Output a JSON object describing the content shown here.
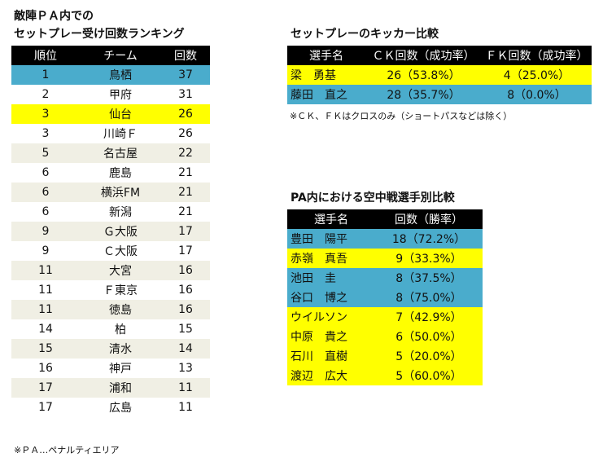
{
  "ranking": {
    "title_line1": "敵陣ＰＡ内での",
    "title_line2": "セットプレー受け回数ランキング",
    "headers": [
      "順位",
      "チーム",
      "回数"
    ],
    "rows": [
      {
        "rank": "1",
        "team": "鳥栖",
        "count": "37",
        "color": "blue"
      },
      {
        "rank": "2",
        "team": "甲府",
        "count": "31",
        "color": "white"
      },
      {
        "rank": "3",
        "team": "仙台",
        "count": "26",
        "color": "yellow"
      },
      {
        "rank": "3",
        "team": "川崎Ｆ",
        "count": "26",
        "color": "white"
      },
      {
        "rank": "5",
        "team": "名古屋",
        "count": "22",
        "color": "beige"
      },
      {
        "rank": "6",
        "team": "鹿島",
        "count": "21",
        "color": "white"
      },
      {
        "rank": "6",
        "team": "横浜FM",
        "count": "21",
        "color": "beige"
      },
      {
        "rank": "6",
        "team": "新潟",
        "count": "21",
        "color": "white"
      },
      {
        "rank": "9",
        "team": "Ｇ大阪",
        "count": "17",
        "color": "beige"
      },
      {
        "rank": "9",
        "team": "Ｃ大阪",
        "count": "17",
        "color": "white"
      },
      {
        "rank": "11",
        "team": "大宮",
        "count": "16",
        "color": "beige"
      },
      {
        "rank": "11",
        "team": "Ｆ東京",
        "count": "16",
        "color": "white"
      },
      {
        "rank": "11",
        "team": "徳島",
        "count": "16",
        "color": "beige"
      },
      {
        "rank": "14",
        "team": "柏",
        "count": "15",
        "color": "white"
      },
      {
        "rank": "15",
        "team": "清水",
        "count": "14",
        "color": "beige"
      },
      {
        "rank": "16",
        "team": "神戸",
        "count": "13",
        "color": "white"
      },
      {
        "rank": "17",
        "team": "浦和",
        "count": "11",
        "color": "beige"
      },
      {
        "rank": "17",
        "team": "広島",
        "count": "11",
        "color": "white"
      }
    ],
    "note": "※ＰＡ…ペナルティエリア"
  },
  "kicker": {
    "title": "セットプレーのキッカー比較",
    "headers": [
      "選手名",
      "ＣＫ回数（成功率）",
      "ＦＫ回数（成功率）"
    ],
    "rows": [
      {
        "name": "梁　勇基",
        "ck": "26（53.8%）",
        "fk": "4（25.0%）",
        "color": "yellow"
      },
      {
        "name": "藤田　直之",
        "ck": "28（35.7%）",
        "fk": "8（0.0%）",
        "color": "blue"
      }
    ],
    "note": "※ＣＫ、ＦＫはクロスのみ（ショートパスなどは除く）"
  },
  "aerial": {
    "title": "PA内における空中戦選手別比較",
    "headers": [
      "選手名",
      "回数（勝率）"
    ],
    "rows": [
      {
        "name": "豊田　陽平",
        "value": "18（72.2%）",
        "color": "blue"
      },
      {
        "name": "赤嶺　真吾",
        "value": "9（33.3%）",
        "color": "yellow"
      },
      {
        "name": "池田　圭",
        "value": "8（37.5%）",
        "color": "blue"
      },
      {
        "name": "谷口　博之",
        "value": "8（75.0%）",
        "color": "blue"
      },
      {
        "name": "ウイルソン",
        "value": "7（42.9%）",
        "color": "yellow"
      },
      {
        "name": "中原　貴之",
        "value": "6（50.0%）",
        "color": "yellow"
      },
      {
        "name": "石川　直樹",
        "value": "5（20.0%）",
        "color": "yellow"
      },
      {
        "name": "渡辺　広大",
        "value": "5（60.0%）",
        "color": "yellow"
      }
    ]
  }
}
